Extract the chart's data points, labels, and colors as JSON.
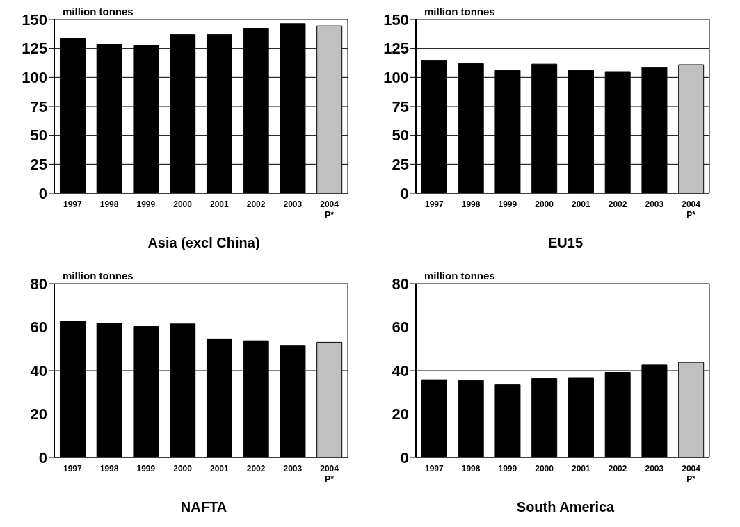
{
  "chart_data": [
    {
      "type": "bar",
      "title": "Asia (excl China)",
      "ylabel": "million tonnes",
      "categories": [
        "1997",
        "1998",
        "1999",
        "2000",
        "2001",
        "2002",
        "2003",
        "2004\nP*"
      ],
      "values": [
        133.5,
        128.5,
        127.5,
        137,
        137,
        142.5,
        146.5,
        144.5
      ],
      "colors": [
        "#000000",
        "#000000",
        "#000000",
        "#000000",
        "#000000",
        "#000000",
        "#000000",
        "#c0c0c0"
      ],
      "ylim": [
        0,
        150
      ],
      "yticks": [
        0,
        25,
        50,
        75,
        100,
        125,
        150
      ],
      "grid": "y"
    },
    {
      "type": "bar",
      "title": "EU15",
      "ylabel": "million tonnes",
      "categories": [
        "1997",
        "1998",
        "1999",
        "2000",
        "2001",
        "2002",
        "2003",
        "2004\nP*"
      ],
      "values": [
        114.5,
        112,
        106,
        111.5,
        106,
        105,
        108.5,
        111
      ],
      "colors": [
        "#000000",
        "#000000",
        "#000000",
        "#000000",
        "#000000",
        "#000000",
        "#000000",
        "#c0c0c0"
      ],
      "ylim": [
        0,
        150
      ],
      "yticks": [
        0,
        25,
        50,
        75,
        100,
        125,
        150
      ],
      "grid": "y"
    },
    {
      "type": "bar",
      "title": "NAFTA",
      "ylabel": "million tonnes",
      "categories": [
        "1997",
        "1998",
        "1999",
        "2000",
        "2001",
        "2002",
        "2003",
        "2004\nP*"
      ],
      "values": [
        62.8,
        61.9,
        60.3,
        61.5,
        54.6,
        53.7,
        51.6,
        53
      ],
      "colors": [
        "#000000",
        "#000000",
        "#000000",
        "#000000",
        "#000000",
        "#000000",
        "#000000",
        "#c0c0c0"
      ],
      "ylim": [
        0,
        80
      ],
      "yticks": [
        0,
        20,
        40,
        60,
        80
      ],
      "grid": "y"
    },
    {
      "type": "bar",
      "title": "South America",
      "ylabel": "million tonnes",
      "categories": [
        "1997",
        "1998",
        "1999",
        "2000",
        "2001",
        "2002",
        "2003",
        "2004\nP*"
      ],
      "values": [
        35.8,
        35.4,
        33.4,
        36.3,
        36.8,
        39.2,
        42.6,
        43.8
      ],
      "colors": [
        "#000000",
        "#000000",
        "#000000",
        "#000000",
        "#000000",
        "#000000",
        "#000000",
        "#c0c0c0"
      ],
      "ylim": [
        0,
        80
      ],
      "yticks": [
        0,
        20,
        40,
        60,
        80
      ],
      "grid": "y"
    }
  ]
}
